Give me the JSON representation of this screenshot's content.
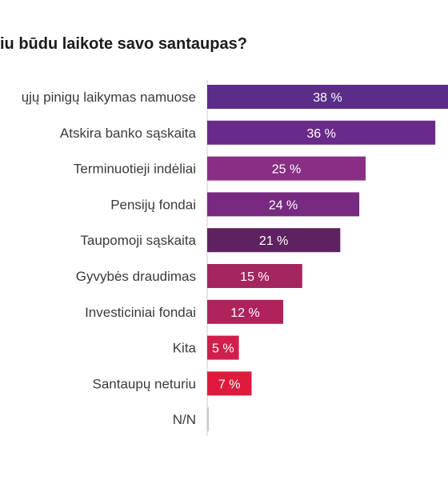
{
  "chart_data": {
    "type": "bar",
    "orientation": "horizontal",
    "title": "iu būdu laikote savo santaupas?",
    "xlabel": "",
    "ylabel": "",
    "categories": [
      "ųjų pinigų laikymas namuose",
      "Atskira banko sąskaita",
      "Terminuotieji indėliai",
      "Pensijų fondai",
      "Taupomoji sąskaita",
      "Gyvybės draudimas",
      "Investiciniai fondai",
      "Kita",
      "Santaupų neturiu",
      "N/N"
    ],
    "values": [
      38,
      36,
      25,
      24,
      21,
      15,
      12,
      5,
      7,
      0
    ],
    "value_labels": [
      "38 %",
      "36 %",
      "25 %",
      "24 %",
      "21 %",
      "15 %",
      "12 %",
      "5 %",
      "7 %",
      ""
    ],
    "colors": [
      "#5b2d86",
      "#6a2a8a",
      "#892e84",
      "#772a80",
      "#5e2260",
      "#a4265f",
      "#b0235a",
      "#cf1f4a",
      "#e01a3c",
      "#c8c8c8"
    ],
    "xlim": [
      0,
      38
    ],
    "grid": false,
    "legend": "none"
  }
}
